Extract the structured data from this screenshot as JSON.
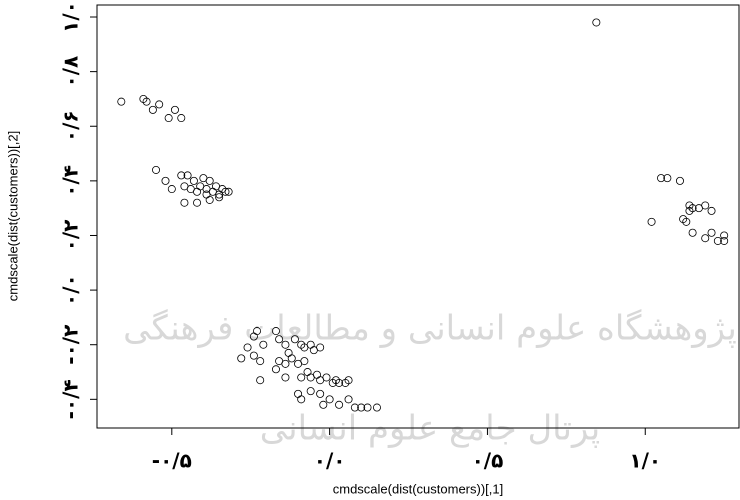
{
  "chart_data": {
    "type": "scatter",
    "xlabel": "cmdscale(dist(customers))[,1]",
    "ylabel": "cmdscale(dist(customers))[,2]",
    "xlim": [
      -0.737,
      1.297
    ],
    "ylim": [
      -0.505,
      1.044
    ],
    "xticks": [
      {
        "value": -0.5,
        "label": "-۰/۵"
      },
      {
        "value": 0,
        "label": "۰/۰"
      },
      {
        "value": 0.5,
        "label": "۰/۵"
      },
      {
        "value": 1,
        "label": "۱/۰"
      }
    ],
    "yticks": [
      {
        "value": -0.4,
        "label": "-۰/۴"
      },
      {
        "value": -0.2,
        "label": "-۰/۲"
      },
      {
        "value": 0,
        "label": "۰/۰"
      },
      {
        "value": 0.2,
        "label": "۰/۲"
      },
      {
        "value": 0.4,
        "label": "۰/۴"
      },
      {
        "value": 0.6,
        "label": "۰/۶"
      },
      {
        "value": 0.8,
        "label": "۰/۸"
      },
      {
        "value": 1,
        "label": "۱/۰"
      }
    ],
    "color": "#000000",
    "watermark": [
      "پژوهشگاه علوم انسانی و مطالعات فرهنگی",
      "پرتال جامع علوم انسانی"
    ],
    "x": [
      -0.66,
      -0.59,
      -0.58,
      -0.56,
      -0.54,
      -0.51,
      -0.49,
      -0.47,
      -0.55,
      -0.52,
      -0.5,
      -0.47,
      -0.46,
      -0.45,
      -0.44,
      -0.46,
      -0.42,
      -0.43,
      -0.41,
      -0.4,
      -0.39,
      -0.38,
      -0.37,
      -0.36,
      -0.35,
      -0.34,
      -0.33,
      -0.32,
      -0.39,
      -0.42,
      -0.38,
      -0.35,
      0.845,
      1.05,
      1.07,
      1.11,
      1.02,
      1.14,
      1.14,
      1.15,
      1.17,
      1.19,
      1.21,
      1.12,
      1.13,
      1.15,
      1.19,
      1.21,
      1.23,
      1.25,
      1.25,
      -0.23,
      -0.24,
      -0.26,
      -0.28,
      -0.21,
      -0.24,
      -0.22,
      -0.22,
      -0.17,
      -0.16,
      -0.14,
      -0.13,
      -0.11,
      -0.09,
      -0.08,
      -0.06,
      -0.05,
      -0.03,
      -0.16,
      -0.14,
      -0.12,
      -0.1,
      -0.08,
      -0.17,
      -0.14,
      -0.09,
      -0.07,
      -0.06,
      -0.04,
      -0.03,
      -0.01,
      0.01,
      0.02,
      0.03,
      0.05,
      0.06,
      -0.1,
      -0.06,
      -0.03,
      0.0,
      0.03,
      0.06,
      0.08,
      0.1,
      0.12,
      0.15,
      -0.09,
      -0.02
    ],
    "y": [
      0.69,
      0.7,
      0.69,
      0.66,
      0.68,
      0.63,
      0.66,
      0.63,
      0.44,
      0.4,
      0.37,
      0.42,
      0.38,
      0.42,
      0.37,
      0.32,
      0.32,
      0.4,
      0.38,
      0.41,
      0.37,
      0.4,
      0.36,
      0.38,
      0.35,
      0.37,
      0.36,
      0.36,
      0.35,
      0.36,
      0.33,
      0.34,
      0.98,
      0.41,
      0.41,
      0.4,
      0.25,
      0.31,
      0.29,
      0.3,
      0.3,
      0.31,
      0.29,
      0.26,
      0.25,
      0.21,
      0.19,
      0.21,
      0.18,
      0.2,
      0.18,
      -0.15,
      -0.17,
      -0.21,
      -0.25,
      -0.2,
      -0.24,
      -0.26,
      -0.33,
      -0.15,
      -0.18,
      -0.2,
      -0.23,
      -0.18,
      -0.2,
      -0.21,
      -0.2,
      -0.22,
      -0.21,
      -0.26,
      -0.27,
      -0.25,
      -0.27,
      -0.26,
      -0.29,
      -0.32,
      -0.32,
      -0.3,
      -0.32,
      -0.31,
      -0.33,
      -0.32,
      -0.34,
      -0.33,
      -0.34,
      -0.34,
      -0.33,
      -0.38,
      -0.37,
      -0.38,
      -0.4,
      -0.42,
      -0.4,
      -0.43,
      -0.43,
      -0.43,
      -0.43,
      -0.4,
      -0.42
    ]
  }
}
